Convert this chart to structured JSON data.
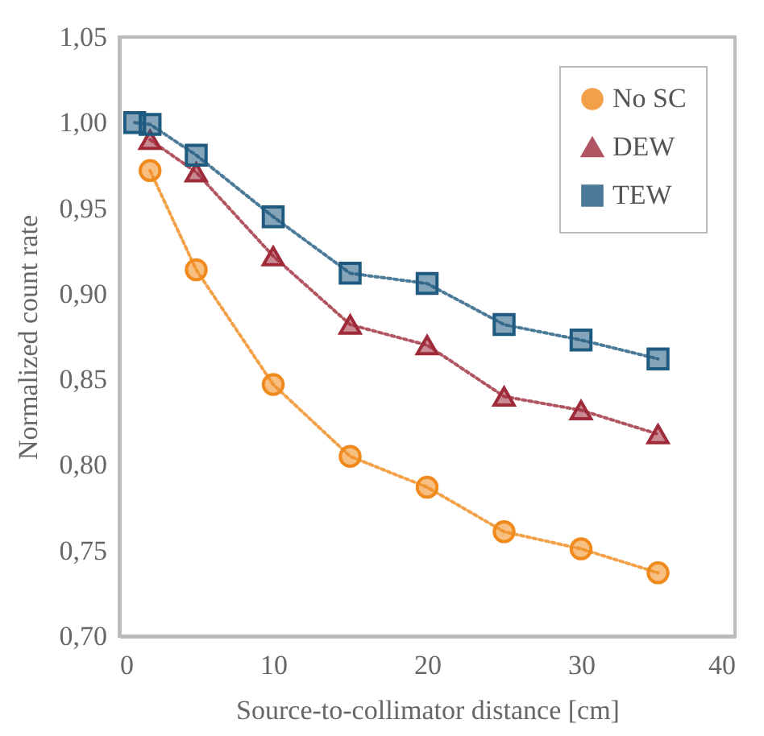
{
  "chart_data": {
    "type": "line",
    "xlabel": "Source-to-collimator distance [cm]",
    "ylabel": "Normalized count rate",
    "xlim": [
      0,
      40
    ],
    "xticks": [
      0,
      10,
      20,
      30,
      40
    ],
    "ylim": [
      0.7,
      1.05
    ],
    "yticks": [
      {
        "value": 0.7,
        "label": "0,70"
      },
      {
        "value": 0.75,
        "label": "0,75"
      },
      {
        "value": 0.8,
        "label": "0,80"
      },
      {
        "value": 0.85,
        "label": "0,85"
      },
      {
        "value": 0.9,
        "label": "0,90"
      },
      {
        "value": 0.95,
        "label": "0,95"
      },
      {
        "value": 1.0,
        "label": "1,00"
      },
      {
        "value": 1.05,
        "label": "1,05"
      }
    ],
    "legend": "top right",
    "line_style": "dotted",
    "grid": false,
    "series": [
      {
        "name": "No SC",
        "color": "#f08a1c",
        "marker": "circle",
        "x": [
          2,
          5,
          10,
          15,
          20,
          25,
          30,
          35
        ],
        "values": [
          0.972,
          0.914,
          0.847,
          0.805,
          0.787,
          0.761,
          0.751,
          0.737
        ]
      },
      {
        "name": "DEW",
        "color": "#9e2a3a",
        "marker": "triangle",
        "x": [
          2,
          5,
          10,
          15,
          20,
          25,
          30,
          35
        ],
        "values": [
          0.99,
          0.971,
          0.922,
          0.882,
          0.87,
          0.84,
          0.832,
          0.818
        ]
      },
      {
        "name": "TEW",
        "color": "#1f5a80",
        "marker": "square",
        "x": [
          1,
          2,
          5,
          10,
          15,
          20,
          25,
          30,
          35
        ],
        "values": [
          1.0,
          0.999,
          0.981,
          0.945,
          0.912,
          0.906,
          0.882,
          0.873,
          0.862
        ]
      }
    ]
  }
}
